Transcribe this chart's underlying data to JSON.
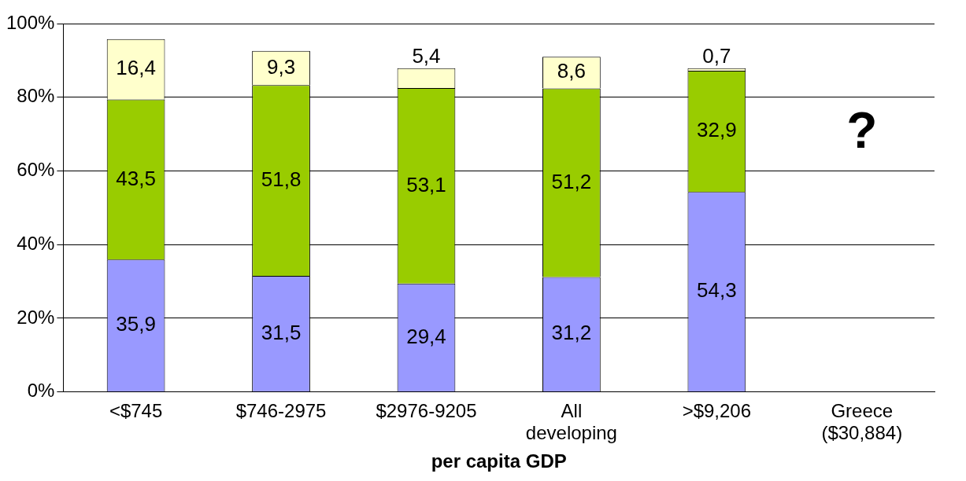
{
  "chart_data": {
    "type": "bar",
    "stacked": true,
    "xlabel": "per capita GDP",
    "categories": [
      "<$745",
      "$746-2975",
      "$2976-9205",
      "All developing",
      ">$9,206",
      "Greece ($30,884)"
    ],
    "series": [
      {
        "color": "#9999ff",
        "values": [
          35.9,
          31.5,
          29.4,
          31.2,
          54.3,
          null
        ],
        "value_labels": [
          "35,9",
          "31,5",
          "29,4",
          "31,2",
          "54,3",
          null
        ]
      },
      {
        "color": "#99cc00",
        "values": [
          43.5,
          51.8,
          53.1,
          51.2,
          32.9,
          null
        ],
        "value_labels": [
          "43,5",
          "51,8",
          "53,1",
          "51,2",
          "32,9",
          null
        ]
      },
      {
        "color": "#ffffcc",
        "values": [
          16.4,
          9.3,
          5.4,
          8.6,
          0.7,
          null
        ],
        "value_labels": [
          "16,4",
          "9,3",
          "5,4",
          "8,6",
          "0,7",
          null
        ]
      }
    ],
    "ylim": [
      0,
      100
    ],
    "yticks": [
      {
        "value": 0,
        "label": "0%"
      },
      {
        "value": 20,
        "label": "20%"
      },
      {
        "value": 40,
        "label": "40%"
      },
      {
        "value": 60,
        "label": "60%"
      },
      {
        "value": 80,
        "label": "80%"
      },
      {
        "value": 100,
        "label": "100%"
      }
    ],
    "grid": "y",
    "legend": false,
    "annotations": [
      "?"
    ]
  }
}
